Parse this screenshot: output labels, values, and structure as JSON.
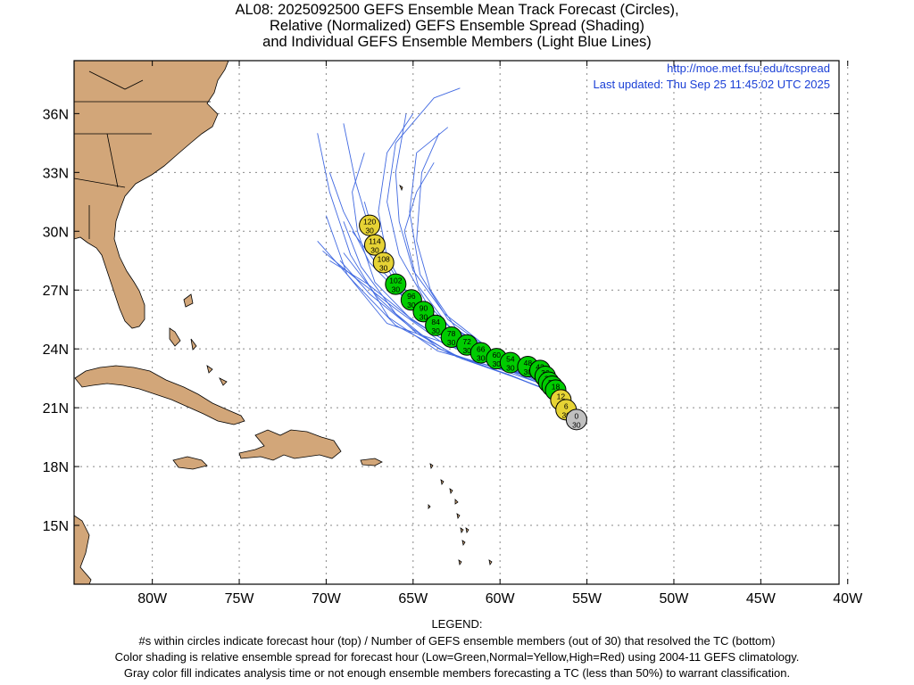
{
  "title": {
    "line1": "AL08: 2025092500 GEFS Ensemble Mean Track Forecast (Circles),",
    "line2": "Relative (Normalized) GEFS Ensemble Spread (Shading)",
    "line3": "and Individual GEFS Ensemble Members (Light Blue Lines)"
  },
  "info": {
    "url": "http://moe.met.fsu.edu/tcspread",
    "updated": "Last updated: Thu Sep 25 11:45:02 UTC 2025"
  },
  "map": {
    "lon_range": [
      -84.5,
      -40.5
    ],
    "lat_range": [
      12.0,
      38.7
    ],
    "lat_ticks": [
      {
        "v": 36,
        "label": "36N"
      },
      {
        "v": 33,
        "label": "33N"
      },
      {
        "v": 30,
        "label": "30N"
      },
      {
        "v": 27,
        "label": "27N"
      },
      {
        "v": 24,
        "label": "24N"
      },
      {
        "v": 21,
        "label": "21N"
      },
      {
        "v": 18,
        "label": "18N"
      },
      {
        "v": 15,
        "label": "15N"
      }
    ],
    "lon_ticks": [
      {
        "v": -80,
        "label": "80W"
      },
      {
        "v": -75,
        "label": "75W"
      },
      {
        "v": -70,
        "label": "70W"
      },
      {
        "v": -65,
        "label": "65W"
      },
      {
        "v": -60,
        "label": "60W"
      },
      {
        "v": -55,
        "label": "55W"
      },
      {
        "v": -50,
        "label": "50W"
      },
      {
        "v": -45,
        "label": "45W"
      },
      {
        "v": -40,
        "label": "40W"
      }
    ],
    "colors": {
      "land": "#d2a679",
      "coast": "#000000",
      "member": "#4169e1",
      "low": "#00cc00",
      "normal": "#e6d335",
      "high": "#ff0000",
      "analysis": "#c0c0c0",
      "info_text": "#1a3fd6"
    }
  },
  "track": [
    {
      "hour": "0",
      "members": "30",
      "lon": -55.6,
      "lat": 20.4,
      "spread": "analysis"
    },
    {
      "hour": "6",
      "members": "30",
      "lon": -56.2,
      "lat": 20.9,
      "spread": "normal"
    },
    {
      "hour": "12",
      "members": "30",
      "lon": -56.5,
      "lat": 21.4,
      "spread": "normal"
    },
    {
      "hour": "18",
      "members": "30",
      "lon": -56.8,
      "lat": 21.9,
      "spread": "low"
    },
    {
      "hour": "24",
      "members": "30",
      "lon": -57.0,
      "lat": 22.1,
      "spread": "low"
    },
    {
      "hour": "30",
      "members": "30",
      "lon": -57.2,
      "lat": 22.3,
      "spread": "low"
    },
    {
      "hour": "36",
      "members": "30",
      "lon": -57.4,
      "lat": 22.6,
      "spread": "low"
    },
    {
      "hour": "42",
      "members": "30",
      "lon": -57.7,
      "lat": 22.9,
      "spread": "low"
    },
    {
      "hour": "48",
      "members": "30",
      "lon": -58.4,
      "lat": 23.1,
      "spread": "low"
    },
    {
      "hour": "54",
      "members": "30",
      "lon": -59.4,
      "lat": 23.3,
      "spread": "low"
    },
    {
      "hour": "60",
      "members": "30",
      "lon": -60.2,
      "lat": 23.5,
      "spread": "low"
    },
    {
      "hour": "66",
      "members": "30",
      "lon": -61.1,
      "lat": 23.8,
      "spread": "low"
    },
    {
      "hour": "72",
      "members": "30",
      "lon": -61.9,
      "lat": 24.2,
      "spread": "low"
    },
    {
      "hour": "78",
      "members": "30",
      "lon": -62.8,
      "lat": 24.6,
      "spread": "low"
    },
    {
      "hour": "84",
      "members": "30",
      "lon": -63.7,
      "lat": 25.2,
      "spread": "low"
    },
    {
      "hour": "90",
      "members": "30",
      "lon": -64.4,
      "lat": 25.9,
      "spread": "low"
    },
    {
      "hour": "96",
      "members": "30",
      "lon": -65.1,
      "lat": 26.5,
      "spread": "low"
    },
    {
      "hour": "102",
      "members": "30",
      "lon": -66.0,
      "lat": 27.3,
      "spread": "low"
    },
    {
      "hour": "108",
      "members": "30",
      "lon": -66.7,
      "lat": 28.4,
      "spread": "normal"
    },
    {
      "hour": "114",
      "members": "30",
      "lon": -67.2,
      "lat": 29.3,
      "spread": "normal"
    },
    {
      "hour": "120",
      "members": "30",
      "lon": -67.5,
      "lat": 30.3,
      "spread": "normal"
    }
  ],
  "members": [
    [
      [
        -55.6,
        20.4
      ],
      [
        -57.5,
        22.0
      ],
      [
        -60.5,
        23.0
      ],
      [
        -63.5,
        24.0
      ],
      [
        -66.0,
        25.8
      ],
      [
        -68.0,
        28.2
      ],
      [
        -69.0,
        30.5
      ]
    ],
    [
      [
        -55.6,
        20.4
      ],
      [
        -57.0,
        22.2
      ],
      [
        -60.0,
        23.3
      ],
      [
        -63.0,
        24.5
      ],
      [
        -65.5,
        26.5
      ],
      [
        -67.0,
        29.0
      ],
      [
        -67.8,
        31.5
      ]
    ],
    [
      [
        -55.6,
        20.4
      ],
      [
        -56.8,
        21.9
      ],
      [
        -59.0,
        23.2
      ],
      [
        -62.0,
        24.3
      ],
      [
        -64.5,
        25.8
      ],
      [
        -66.8,
        28.0
      ],
      [
        -68.5,
        30.0
      ]
    ],
    [
      [
        -55.6,
        20.4
      ],
      [
        -57.2,
        22.4
      ],
      [
        -60.0,
        23.6
      ],
      [
        -62.5,
        25.0
      ],
      [
        -64.0,
        27.0
      ],
      [
        -64.8,
        29.5
      ],
      [
        -64.5,
        33.0
      ],
      [
        -63.5,
        35.0
      ]
    ],
    [
      [
        -55.6,
        20.4
      ],
      [
        -57.5,
        22.6
      ],
      [
        -60.5,
        23.9
      ],
      [
        -63.0,
        25.5
      ],
      [
        -64.6,
        27.8
      ],
      [
        -65.2,
        31.0
      ],
      [
        -64.8,
        34.0
      ],
      [
        -63.0,
        35.3
      ]
    ],
    [
      [
        -55.6,
        20.4
      ],
      [
        -57.0,
        21.8
      ],
      [
        -59.5,
        22.7
      ],
      [
        -62.5,
        23.6
      ],
      [
        -65.0,
        25.0
      ],
      [
        -67.5,
        26.8
      ],
      [
        -69.2,
        28.5
      ]
    ],
    [
      [
        -55.6,
        20.4
      ],
      [
        -57.3,
        22.3
      ],
      [
        -60.2,
        23.5
      ],
      [
        -62.8,
        24.8
      ],
      [
        -65.0,
        26.3
      ],
      [
        -66.5,
        28.7
      ],
      [
        -67.0,
        31.0
      ],
      [
        -66.5,
        34.0
      ],
      [
        -65.0,
        36.0
      ]
    ],
    [
      [
        -55.6,
        20.4
      ],
      [
        -56.9,
        22.0
      ],
      [
        -59.8,
        22.9
      ],
      [
        -63.0,
        23.8
      ],
      [
        -66.0,
        25.2
      ],
      [
        -68.5,
        27.5
      ],
      [
        -70.5,
        29.5
      ]
    ],
    [
      [
        -55.6,
        20.4
      ],
      [
        -57.4,
        22.5
      ],
      [
        -60.3,
        23.8
      ],
      [
        -63.2,
        25.3
      ],
      [
        -65.5,
        27.0
      ],
      [
        -67.3,
        29.5
      ],
      [
        -68.3,
        32.5
      ],
      [
        -69.0,
        35.5
      ]
    ],
    [
      [
        -55.6,
        20.4
      ],
      [
        -57.1,
        22.2
      ],
      [
        -60.0,
        23.1
      ],
      [
        -62.8,
        24.2
      ],
      [
        -65.2,
        25.6
      ],
      [
        -67.6,
        27.3
      ],
      [
        -69.8,
        28.5
      ]
    ],
    [
      [
        -55.6,
        20.4
      ],
      [
        -57.6,
        22.7
      ],
      [
        -60.6,
        24.0
      ],
      [
        -63.2,
        25.8
      ],
      [
        -65.0,
        28.0
      ],
      [
        -65.8,
        30.5
      ],
      [
        -66.0,
        33.0
      ],
      [
        -65.4,
        36.0
      ]
    ],
    [
      [
        -55.6,
        20.4
      ],
      [
        -56.7,
        21.7
      ],
      [
        -59.3,
        22.6
      ],
      [
        -62.2,
        23.5
      ],
      [
        -64.8,
        24.8
      ],
      [
        -67.0,
        26.6
      ],
      [
        -69.0,
        28.9
      ]
    ],
    [
      [
        -55.6,
        20.4
      ],
      [
        -57.2,
        22.3
      ],
      [
        -60.1,
        23.4
      ],
      [
        -63.0,
        24.7
      ],
      [
        -65.3,
        26.4
      ],
      [
        -67.5,
        28.4
      ],
      [
        -69.0,
        31.0
      ],
      [
        -69.8,
        33.0
      ]
    ],
    [
      [
        -55.6,
        20.4
      ],
      [
        -57.3,
        22.1
      ],
      [
        -60.3,
        23.2
      ],
      [
        -63.3,
        24.3
      ],
      [
        -65.8,
        25.9
      ],
      [
        -68.3,
        27.6
      ],
      [
        -70.2,
        29.0
      ]
    ],
    [
      [
        -55.6,
        20.4
      ],
      [
        -57.5,
        22.5
      ],
      [
        -60.4,
        23.7
      ],
      [
        -62.9,
        25.1
      ],
      [
        -64.7,
        27.2
      ],
      [
        -65.5,
        30.0
      ],
      [
        -64.8,
        32.0
      ],
      [
        -63.8,
        33.5
      ]
    ],
    [
      [
        -55.6,
        20.4
      ],
      [
        -57.0,
        22.0
      ],
      [
        -59.7,
        23.1
      ],
      [
        -62.6,
        24.1
      ],
      [
        -65.1,
        25.5
      ],
      [
        -67.2,
        27.4
      ],
      [
        -68.2,
        30.0
      ],
      [
        -68.5,
        32.0
      ],
      [
        -67.8,
        34.0
      ]
    ],
    [
      [
        -55.6,
        20.4
      ],
      [
        -56.8,
        22.1
      ],
      [
        -59.8,
        23.5
      ],
      [
        -63.5,
        24.4
      ],
      [
        -66.5,
        25.3
      ],
      [
        -68.8,
        27.8
      ],
      [
        -70.0,
        30.8
      ]
    ],
    [
      [
        -55.6,
        20.4
      ],
      [
        -57.2,
        22.2
      ],
      [
        -60.2,
        23.3
      ],
      [
        -62.3,
        24.6
      ],
      [
        -64.2,
        26.3
      ],
      [
        -65.8,
        28.8
      ],
      [
        -66.5,
        31.5
      ],
      [
        -66.0,
        34.5
      ],
      [
        -63.8,
        36.8
      ],
      [
        -62.3,
        37.3
      ]
    ],
    [
      [
        -55.6,
        20.4
      ],
      [
        -57.4,
        22.4
      ],
      [
        -60.0,
        23.0
      ],
      [
        -63.6,
        23.9
      ],
      [
        -66.4,
        25.6
      ],
      [
        -68.6,
        28.8
      ],
      [
        -69.8,
        32.0
      ],
      [
        -70.5,
        35.0
      ]
    ]
  ],
  "legend": {
    "heading": "LEGEND:",
    "line1": "#s within circles indicate forecast hour (top) / Number of GEFS ensemble members (out of 30) that resolved the TC (bottom)",
    "line2": "Color shading is relative ensemble spread for forecast hour (Low=Green,Normal=Yellow,High=Red) using 2004-11 GEFS climatology.",
    "line3": "Gray color fill indicates analysis time or not enough ensemble members forecasting a TC (less than 50%) to warrant classification."
  }
}
